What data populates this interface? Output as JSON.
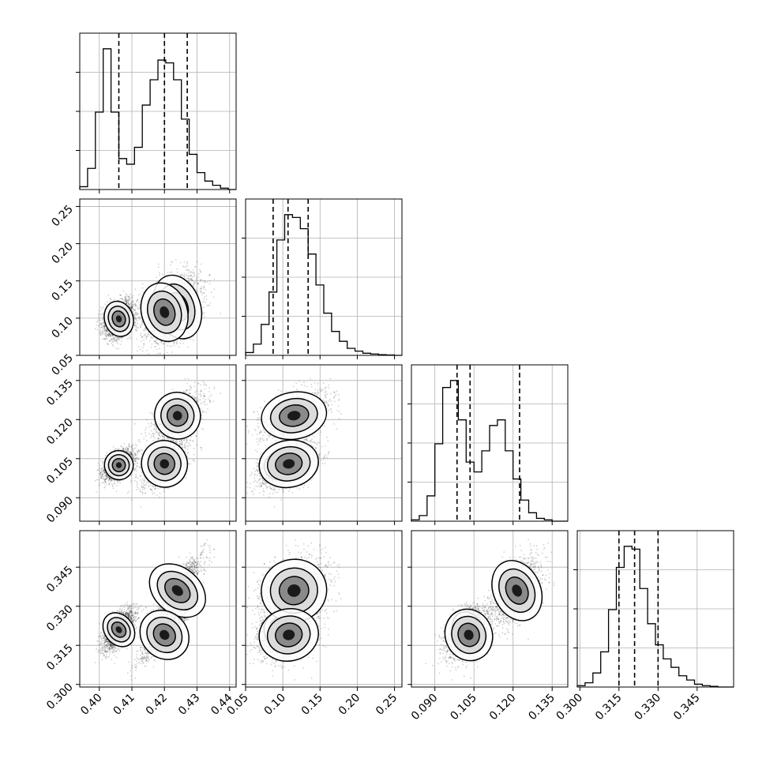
{
  "chart_data": {
    "type": "corner",
    "parameters": [
      {
        "id": "p0",
        "range": [
          0.394,
          0.442
        ],
        "ticks": [
          0.4,
          0.41,
          0.42,
          0.43,
          0.44
        ],
        "tick_labels": [
          "0.40",
          "0.41",
          "0.42",
          "0.43",
          "0.44"
        ],
        "quantiles": [
          0.406,
          0.42,
          0.427
        ],
        "histogram": [
          0.02,
          0.15,
          0.55,
          1.0,
          0.55,
          0.22,
          0.18,
          0.3,
          0.6,
          0.78,
          0.92,
          0.9,
          0.78,
          0.5,
          0.25,
          0.12,
          0.06,
          0.03,
          0.01,
          0.0
        ]
      },
      {
        "id": "p1",
        "range": [
          0.05,
          0.26
        ],
        "ticks": [
          0.05,
          0.1,
          0.15,
          0.2,
          0.25
        ],
        "tick_labels": [
          "0.05",
          "0.10",
          "0.15",
          "0.20",
          "0.25"
        ],
        "quantiles": [
          0.087,
          0.107,
          0.134
        ],
        "histogram": [
          0.02,
          0.08,
          0.22,
          0.45,
          0.82,
          1.0,
          0.98,
          0.9,
          0.72,
          0.5,
          0.3,
          0.17,
          0.1,
          0.05,
          0.03,
          0.015,
          0.01,
          0.005,
          0.003,
          0.0
        ]
      },
      {
        "id": "p2",
        "range": [
          0.081,
          0.141
        ],
        "ticks": [
          0.09,
          0.105,
          0.12,
          0.135
        ],
        "tick_labels": [
          "0.090",
          "0.105",
          "0.120",
          "0.135"
        ],
        "quantiles": [
          0.0985,
          0.1035,
          0.1225
        ],
        "histogram": [
          0.01,
          0.04,
          0.18,
          0.55,
          0.95,
          1.0,
          0.72,
          0.42,
          0.35,
          0.5,
          0.68,
          0.72,
          0.5,
          0.3,
          0.15,
          0.06,
          0.02,
          0.01,
          0.0,
          0.0
        ]
      },
      {
        "id": "p3",
        "range": [
          0.299,
          0.359
        ],
        "ticks": [
          0.3,
          0.315,
          0.33,
          0.345
        ],
        "tick_labels": [
          "0.300",
          "0.315",
          "0.330",
          "0.345"
        ],
        "quantiles": [
          0.315,
          0.321,
          0.33
        ],
        "histogram": [
          0.01,
          0.03,
          0.1,
          0.25,
          0.55,
          0.85,
          1.0,
          0.98,
          0.7,
          0.45,
          0.3,
          0.2,
          0.14,
          0.08,
          0.05,
          0.02,
          0.01,
          0.005,
          0.0,
          0.0
        ]
      }
    ],
    "clusters": [
      {
        "weight": 0.45,
        "mean": [
          0.406,
          0.099,
          0.1025,
          0.321
        ],
        "sd": [
          0.0022,
          0.012,
          0.0028,
          0.0035
        ],
        "corr_3_0": 0.6
      },
      {
        "weight": 0.3,
        "mean": [
          0.424,
          0.115,
          0.1215,
          0.336
        ],
        "sd": [
          0.0035,
          0.022,
          0.0045,
          0.006
        ],
        "corr_3_0": 0.85
      },
      {
        "weight": 0.25,
        "mean": [
          0.42,
          0.108,
          0.103,
          0.319
        ],
        "sd": [
          0.0035,
          0.02,
          0.0045,
          0.005
        ],
        "corr_3_0": 0.85
      }
    ],
    "grid": true
  }
}
